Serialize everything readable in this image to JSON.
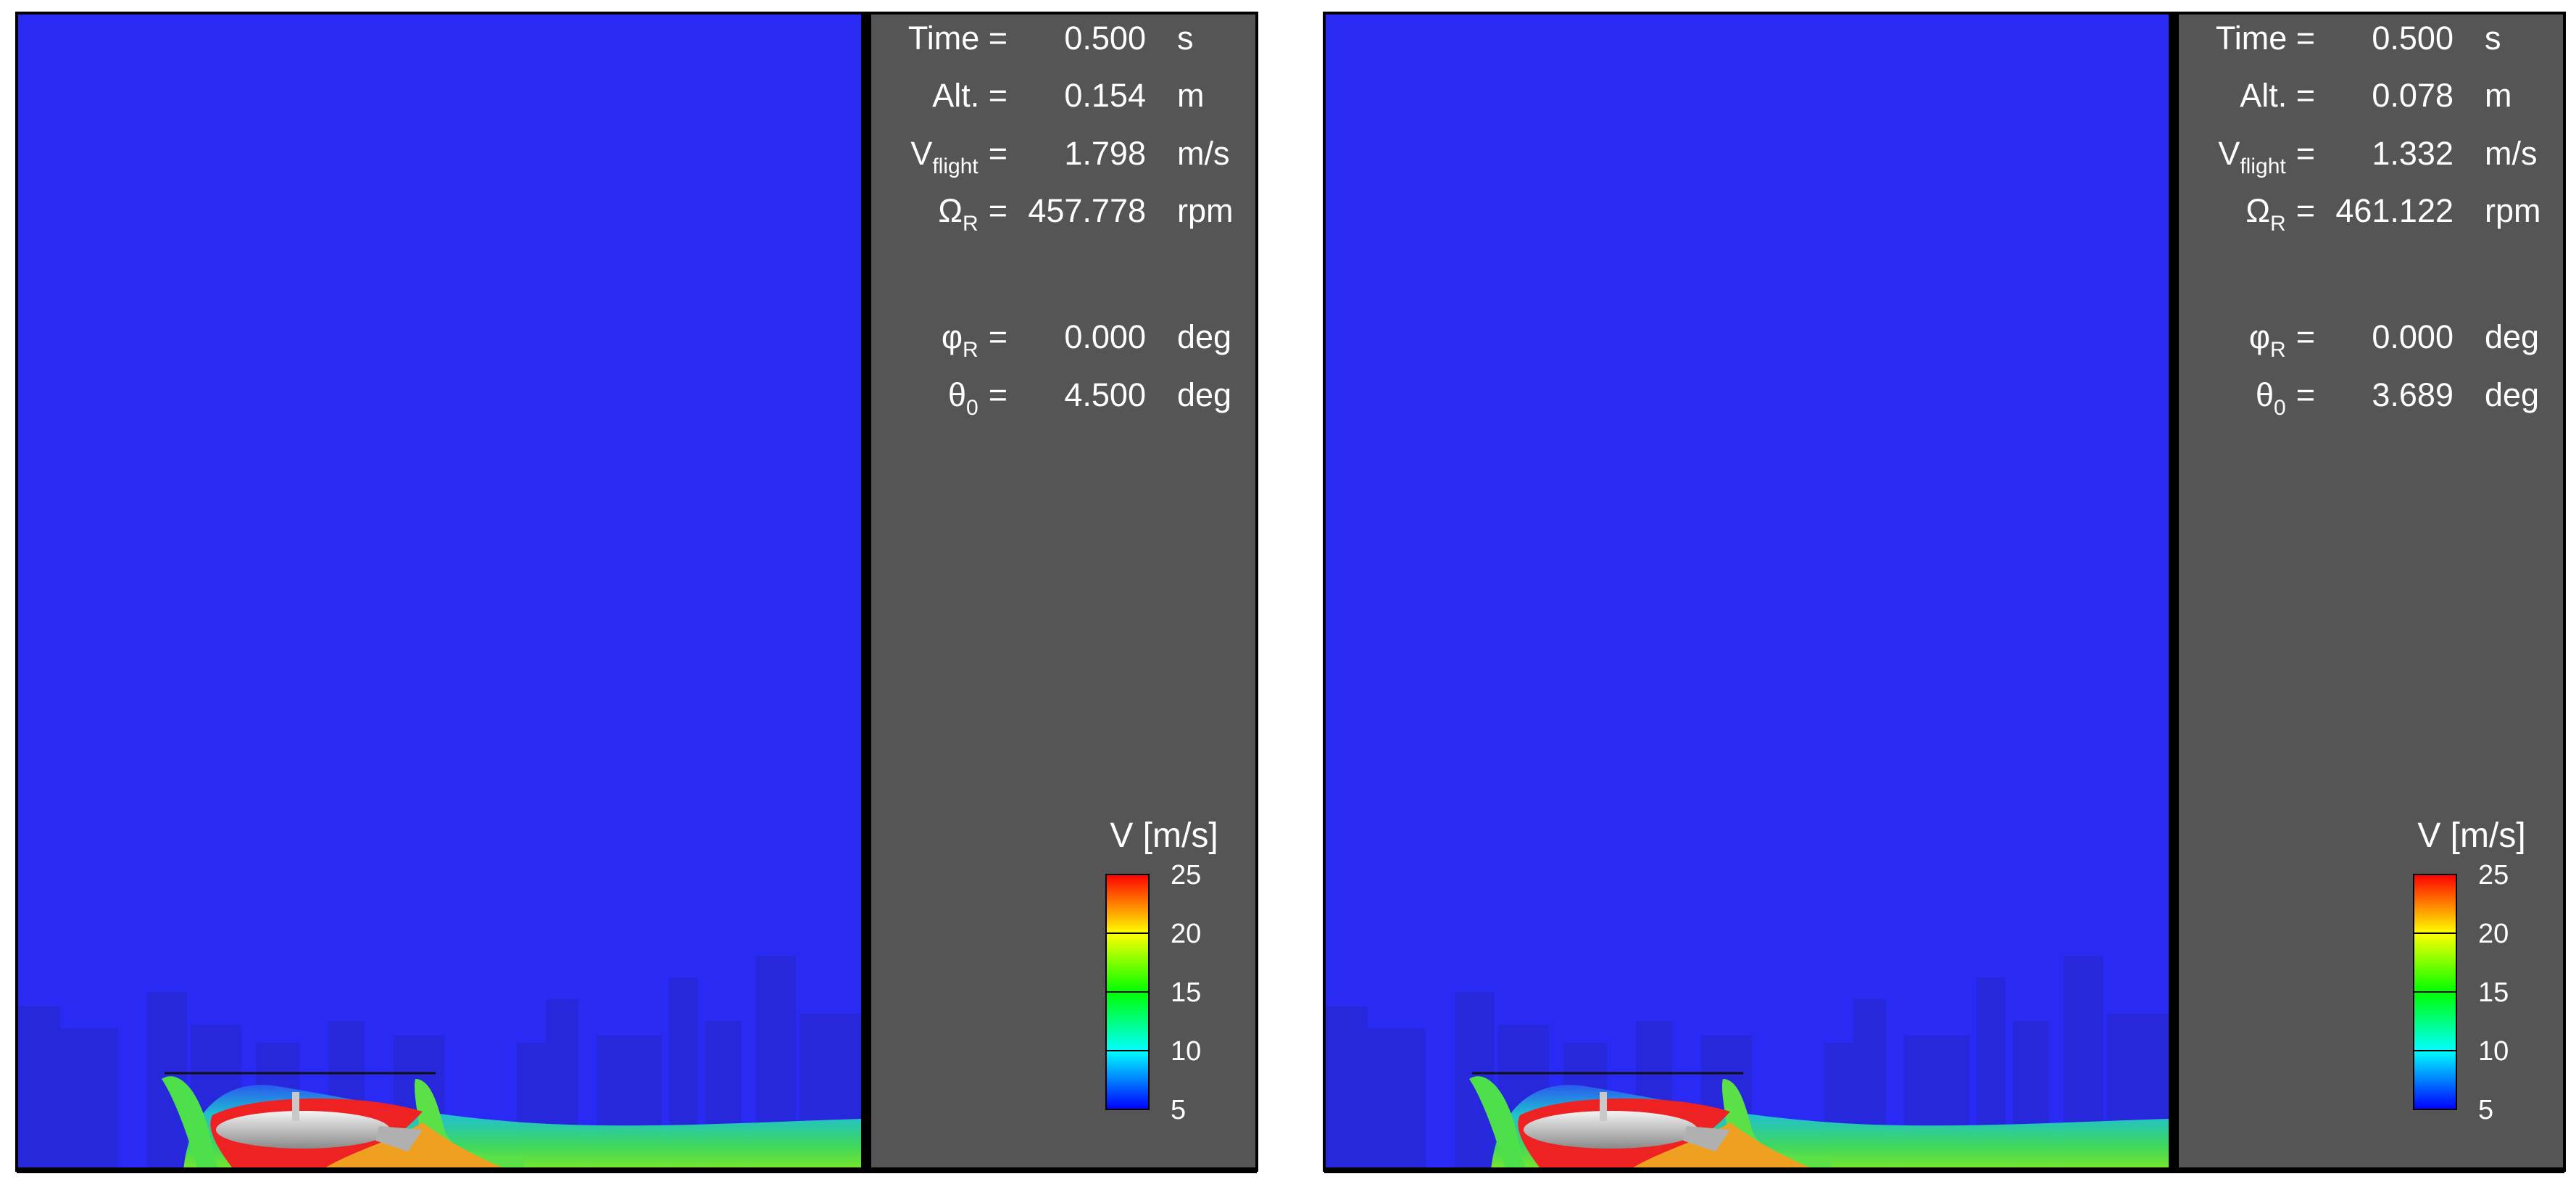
{
  "panels": [
    {
      "rows": [
        {
          "label": "Time =",
          "value": "0.500",
          "unit": "s"
        },
        {
          "label": "Alt. =",
          "value": "0.154",
          "unit": "m"
        },
        {
          "label": "V",
          "sub": "flight",
          "eq": "=",
          "value": "1.798",
          "unit": "m/s"
        },
        {
          "label": "Ω",
          "sub": "R",
          "eq": "=",
          "value": "457.778",
          "unit": "rpm"
        },
        {
          "label": "φ",
          "sub": "R",
          "eq": "=",
          "value": "0.000",
          "unit": "deg"
        },
        {
          "label": "θ",
          "sub": "0",
          "eq": "=",
          "value": "4.500",
          "unit": "deg"
        }
      ],
      "colorbar": {
        "title": "V [m/s]",
        "range": [
          5,
          25
        ],
        "ticks": [
          5,
          10,
          15,
          20,
          25
        ]
      }
    },
    {
      "rows": [
        {
          "label": "Time =",
          "value": "0.500",
          "unit": "s"
        },
        {
          "label": "Alt. =",
          "value": "0.078",
          "unit": "m"
        },
        {
          "label": "V",
          "sub": "flight",
          "eq": "=",
          "value": "1.332",
          "unit": "m/s"
        },
        {
          "label": "Ω",
          "sub": "R",
          "eq": "=",
          "value": "461.122",
          "unit": "rpm"
        },
        {
          "label": "φ",
          "sub": "R",
          "eq": "=",
          "value": "0.000",
          "unit": "deg"
        },
        {
          "label": "θ",
          "sub": "0",
          "eq": "=",
          "value": "3.689",
          "unit": "deg"
        }
      ],
      "colorbar": {
        "title": "V [m/s]",
        "range": [
          5,
          25
        ],
        "ticks": [
          5,
          10,
          15,
          20,
          25
        ]
      }
    }
  ]
}
